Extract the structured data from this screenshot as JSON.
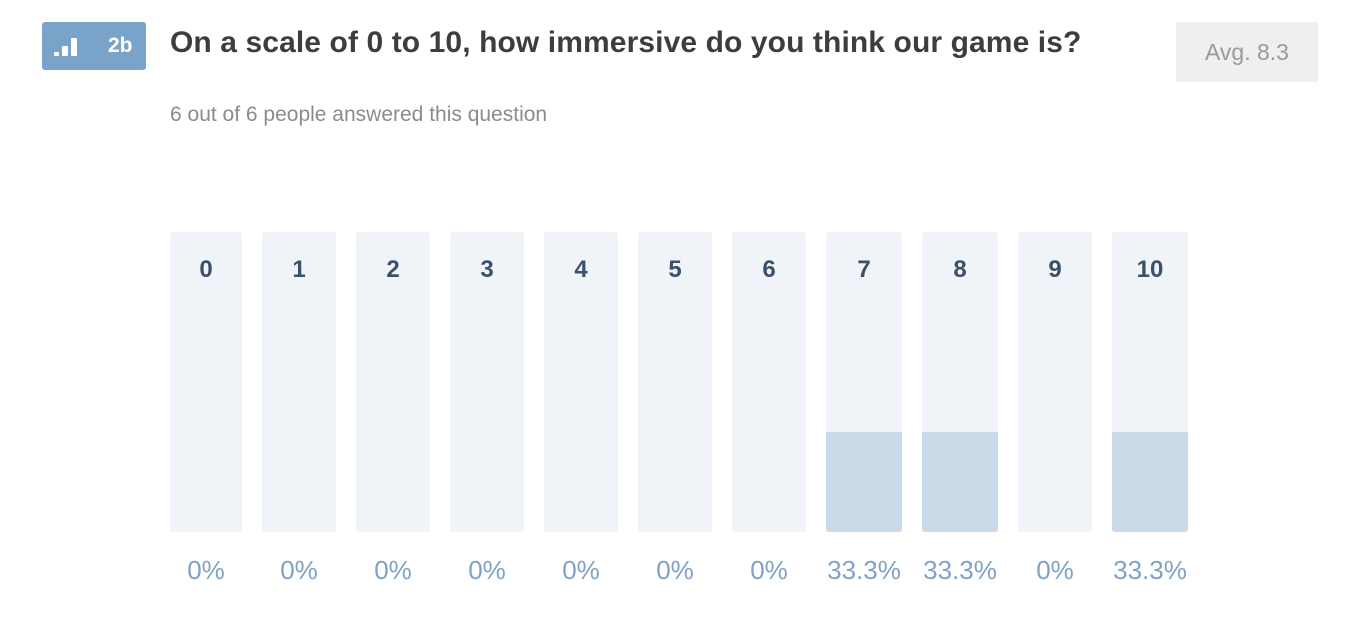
{
  "badge": {
    "number": "2b",
    "icon": "bar-chart-icon",
    "color": "#7aa3c9"
  },
  "question": {
    "title": "On a scale of 0 to 10, how immersive do you think our game is?",
    "answered_text": "6 out of 6 people answered this question",
    "average_label": "Avg. 8.3"
  },
  "colors": {
    "track": "#f0f3f8",
    "fill": "#cbdae9",
    "label": "#3a5169",
    "percent": "#7fa2c6"
  },
  "chart_data": {
    "type": "bar",
    "categories": [
      "0",
      "1",
      "2",
      "3",
      "4",
      "5",
      "6",
      "7",
      "8",
      "9",
      "10"
    ],
    "values": [
      0,
      0,
      0,
      0,
      0,
      0,
      0,
      33.3,
      33.3,
      0,
      33.3
    ],
    "value_labels": [
      "0%",
      "0%",
      "0%",
      "0%",
      "0%",
      "0%",
      "0%",
      "33.3%",
      "33.3%",
      "0%",
      "33.3%"
    ],
    "ylim": [
      0,
      100
    ],
    "unit": "%"
  }
}
